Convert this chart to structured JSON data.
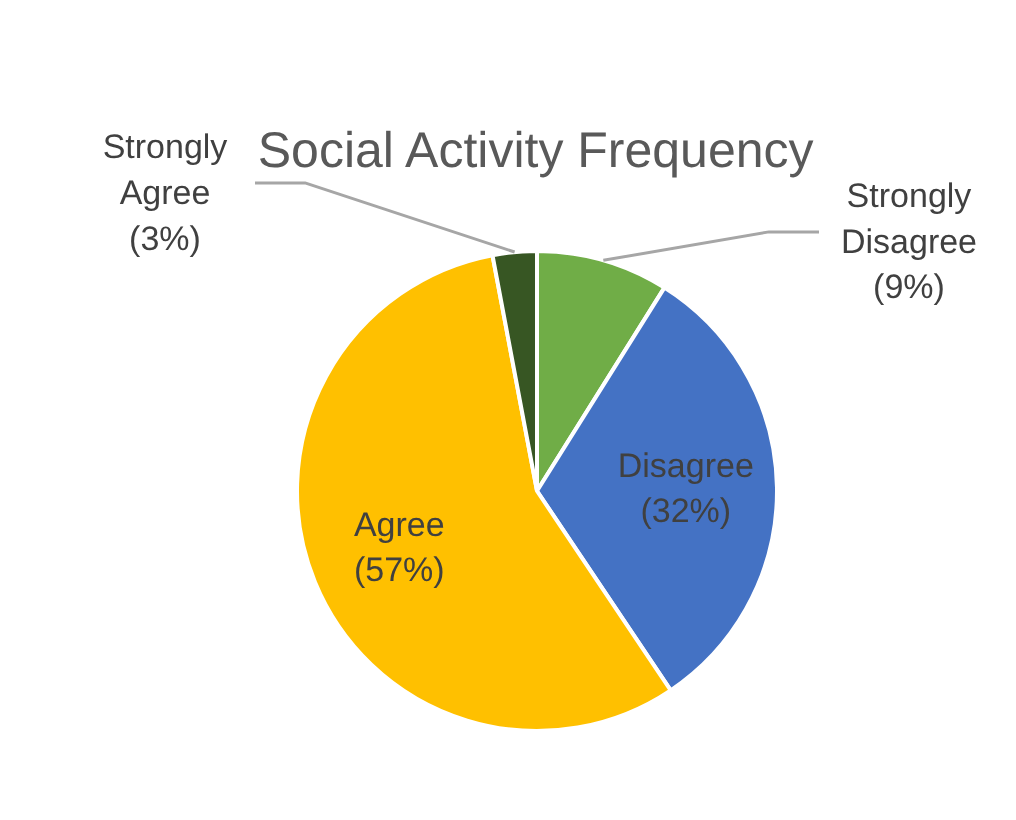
{
  "chart_data": {
    "type": "pie",
    "title": "Social Activity Frequency",
    "categories": [
      "Strongly Disagree",
      "Disagree",
      "Agree",
      "Strongly Agree"
    ],
    "values": [
      9,
      32,
      57,
      3
    ],
    "colors": [
      "#70ad47",
      "#4472c4",
      "#ffc000",
      "#375623"
    ],
    "value_labels": [
      "(9%)",
      "(32%)",
      "(57%)",
      "(3%)"
    ]
  }
}
